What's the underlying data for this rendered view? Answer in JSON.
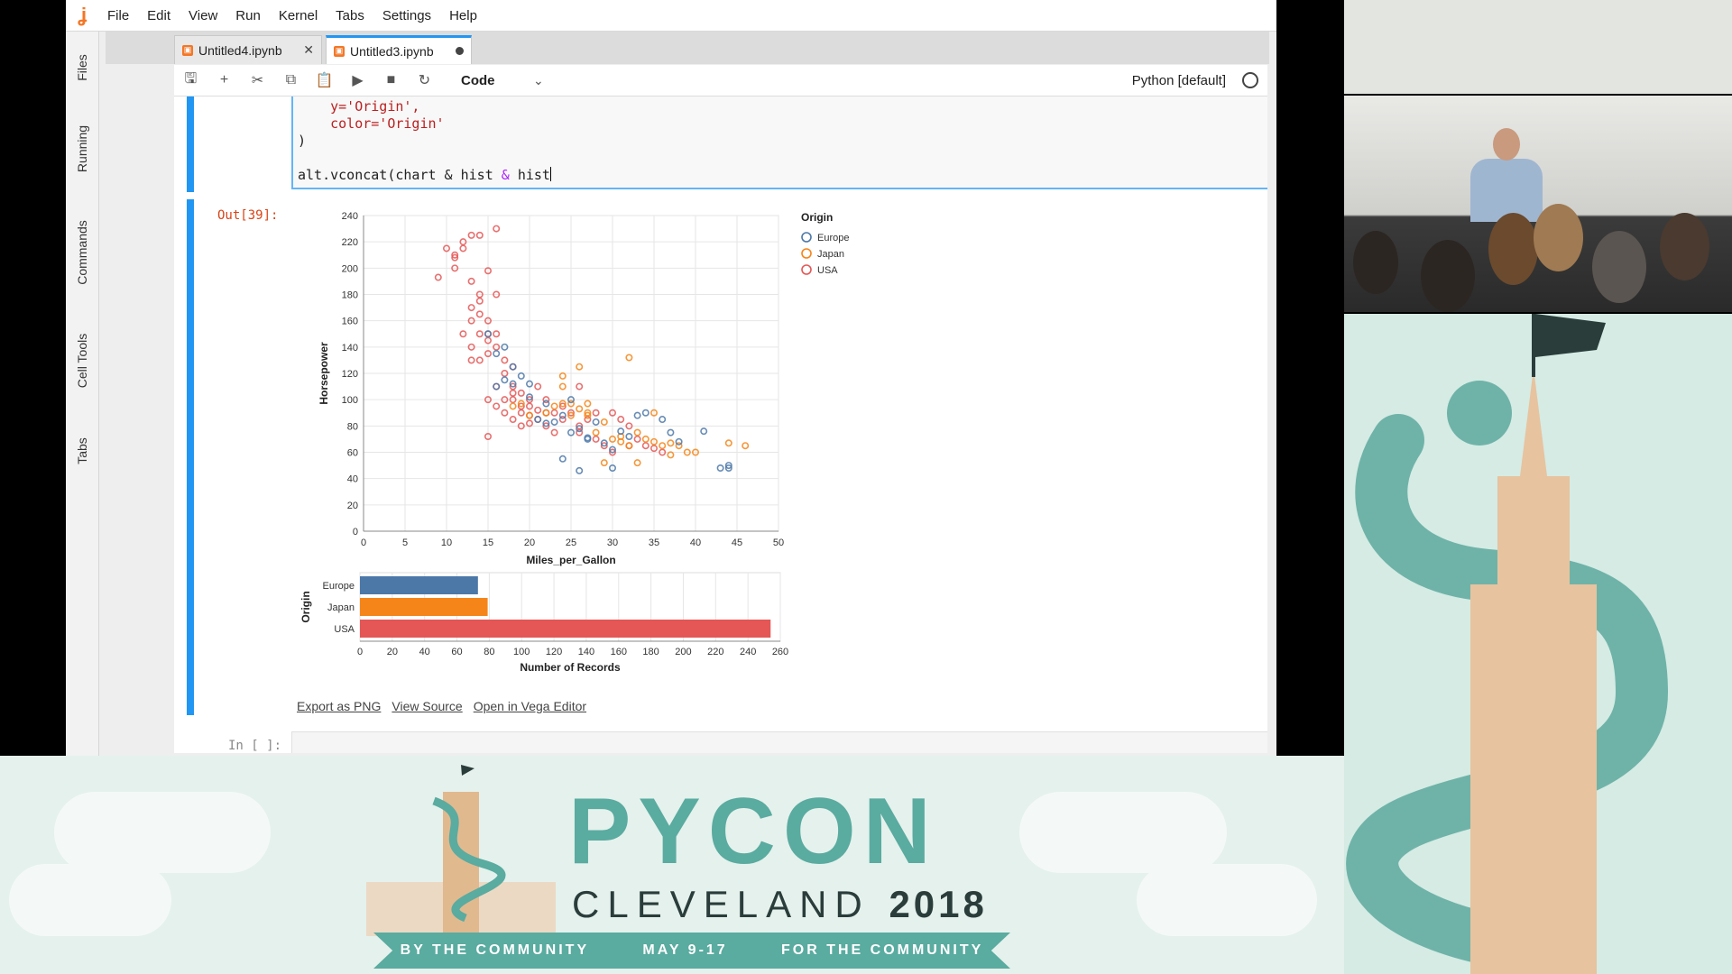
{
  "menubar": {
    "items": [
      "File",
      "Edit",
      "View",
      "Run",
      "Kernel",
      "Tabs",
      "Settings",
      "Help"
    ]
  },
  "sidebar": {
    "tabs": [
      "Files",
      "Running",
      "Commands",
      "Cell Tools",
      "Tabs"
    ]
  },
  "tabs": [
    {
      "label": "Untitled4.ipynb",
      "active": false
    },
    {
      "label": "Untitled3.ipynb",
      "active": true
    }
  ],
  "toolbar": {
    "cell_type": "Code",
    "kernel": "Python [default]",
    "icons": [
      "save-icon",
      "add-icon",
      "cut-icon",
      "copy-icon",
      "paste-icon",
      "run-icon",
      "stop-icon",
      "restart-icon"
    ]
  },
  "code_cell": {
    "lines": [
      "    y='Origin',",
      "    color='Origin'",
      ")",
      "",
      "alt.vconcat(chart & hist"
    ]
  },
  "output": {
    "prompt": "Out[39]:",
    "links": [
      "Export as PNG",
      "View Source",
      "Open in Vega Editor"
    ]
  },
  "input_prompt": "In [ ]:",
  "chart_data": [
    {
      "type": "scatter",
      "xlabel": "Miles_per_Gallon",
      "ylabel": "Horsepower",
      "xlim": [
        0,
        50
      ],
      "ylim": [
        0,
        240
      ],
      "xticks": [
        0,
        5,
        10,
        15,
        20,
        25,
        30,
        35,
        40,
        45,
        50
      ],
      "yticks": [
        0,
        20,
        40,
        60,
        80,
        100,
        120,
        140,
        160,
        180,
        200,
        220,
        240
      ],
      "grid": true,
      "legend": {
        "title": "Origin",
        "position": "top-right",
        "entries": [
          "Europe",
          "Japan",
          "USA"
        ]
      },
      "colors": {
        "Europe": "#4c78a8",
        "Japan": "#f58518",
        "USA": "#e45756"
      },
      "series": [
        {
          "name": "USA",
          "points": [
            [
              9,
              193
            ],
            [
              10,
              215
            ],
            [
              11,
              210
            ],
            [
              11,
              208
            ],
            [
              12,
              220
            ],
            [
              13,
              225
            ],
            [
              13,
              190
            ],
            [
              14,
              175
            ],
            [
              13,
              170
            ],
            [
              14,
              165
            ],
            [
              14,
              150
            ],
            [
              15,
              160
            ],
            [
              15,
              150
            ],
            [
              15,
              145
            ],
            [
              16,
              150
            ],
            [
              16,
              140
            ],
            [
              17,
              130
            ],
            [
              18,
              125
            ],
            [
              18,
              110
            ],
            [
              18,
              105
            ],
            [
              18,
              100
            ],
            [
              19,
              95
            ],
            [
              19,
              90
            ],
            [
              20,
              100
            ],
            [
              20,
              95
            ],
            [
              20,
              88
            ],
            [
              21,
              85
            ],
            [
              21,
              110
            ],
            [
              22,
              100
            ],
            [
              22,
              90
            ],
            [
              23,
              90
            ],
            [
              24,
              85
            ],
            [
              25,
              90
            ],
            [
              26,
              80
            ],
            [
              26,
              75
            ],
            [
              27,
              85
            ],
            [
              28,
              90
            ],
            [
              15,
              198
            ],
            [
              14,
              180
            ],
            [
              16,
              180
            ],
            [
              12,
              150
            ],
            [
              13,
              140
            ],
            [
              17,
              120
            ],
            [
              16,
              110
            ],
            [
              15,
              100
            ],
            [
              16,
              95
            ],
            [
              17,
              90
            ],
            [
              18,
              85
            ],
            [
              19,
              80
            ],
            [
              22,
              80
            ],
            [
              23,
              75
            ],
            [
              30,
              90
            ],
            [
              31,
              85
            ],
            [
              32,
              80
            ],
            [
              33,
              70
            ],
            [
              34,
              65
            ],
            [
              35,
              63
            ],
            [
              36,
              60
            ],
            [
              14,
              130
            ],
            [
              15,
              135
            ],
            [
              19,
              105
            ],
            [
              24,
              95
            ],
            [
              28,
              70
            ],
            [
              29,
              65
            ],
            [
              30,
              60
            ],
            [
              32,
              65
            ],
            [
              26,
              110
            ],
            [
              17,
              100
            ],
            [
              13,
              130
            ],
            [
              11,
              200
            ],
            [
              12,
              215
            ],
            [
              16,
              230
            ],
            [
              14,
              225
            ],
            [
              13,
              160
            ],
            [
              15,
              72
            ],
            [
              20,
              82
            ],
            [
              21,
              92
            ]
          ]
        },
        {
          "name": "Japan",
          "points": [
            [
              18,
              95
            ],
            [
              19,
              97
            ],
            [
              20,
              88
            ],
            [
              22,
              90
            ],
            [
              23,
              95
            ],
            [
              24,
              97
            ],
            [
              24,
              110
            ],
            [
              25,
              97
            ],
            [
              26,
              93
            ],
            [
              27,
              88
            ],
            [
              27,
              97
            ],
            [
              28,
              75
            ],
            [
              29,
              83
            ],
            [
              30,
              70
            ],
            [
              31,
              68
            ],
            [
              32,
              65
            ],
            [
              33,
              75
            ],
            [
              34,
              70
            ],
            [
              35,
              68
            ],
            [
              36,
              65
            ],
            [
              37,
              67
            ],
            [
              38,
              65
            ],
            [
              39,
              60
            ],
            [
              40,
              60
            ],
            [
              44,
              67
            ],
            [
              46,
              65
            ],
            [
              32,
              132
            ],
            [
              31,
              72
            ],
            [
              29,
              52
            ],
            [
              27,
              90
            ],
            [
              25,
              88
            ],
            [
              33,
              52
            ],
            [
              35,
              90
            ],
            [
              37,
              58
            ],
            [
              24,
              118
            ],
            [
              26,
              125
            ]
          ]
        },
        {
          "name": "Europe",
          "points": [
            [
              16,
              110
            ],
            [
              17,
              115
            ],
            [
              18,
              112
            ],
            [
              20,
              102
            ],
            [
              21,
              85
            ],
            [
              22,
              97
            ],
            [
              23,
              83
            ],
            [
              24,
              88
            ],
            [
              25,
              75
            ],
            [
              26,
              78
            ],
            [
              27,
              71
            ],
            [
              28,
              83
            ],
            [
              29,
              67
            ],
            [
              30,
              62
            ],
            [
              31,
              76
            ],
            [
              32,
              72
            ],
            [
              33,
              88
            ],
            [
              34,
              90
            ],
            [
              36,
              85
            ],
            [
              37,
              75
            ],
            [
              38,
              68
            ],
            [
              41,
              76
            ],
            [
              43,
              48
            ],
            [
              44,
              50
            ],
            [
              44,
              48
            ],
            [
              26,
              46
            ],
            [
              24,
              55
            ],
            [
              27,
              70
            ],
            [
              30,
              48
            ],
            [
              22,
              82
            ],
            [
              20,
              112
            ],
            [
              19,
              118
            ],
            [
              18,
              125
            ],
            [
              15,
              150
            ],
            [
              16,
              135
            ],
            [
              17,
              140
            ],
            [
              25,
              100
            ]
          ]
        }
      ]
    },
    {
      "type": "bar",
      "orientation": "horizontal",
      "ylabel": "Origin",
      "xlabel": "Number of Records",
      "categories": [
        "Europe",
        "Japan",
        "USA"
      ],
      "values": [
        73,
        79,
        254
      ],
      "xlim": [
        0,
        260
      ],
      "xticks": [
        0,
        20,
        40,
        60,
        80,
        100,
        120,
        140,
        160,
        180,
        200,
        220,
        240,
        260
      ],
      "colors": [
        "#4c78a8",
        "#f58518",
        "#e45756"
      ]
    }
  ],
  "banner": {
    "title": "PYCON",
    "subtitle_city": "CLEVELAND",
    "subtitle_year": "2018",
    "ribbon": [
      "BY THE COMMUNITY",
      "MAY 9-17",
      "FOR THE COMMUNITY"
    ]
  }
}
